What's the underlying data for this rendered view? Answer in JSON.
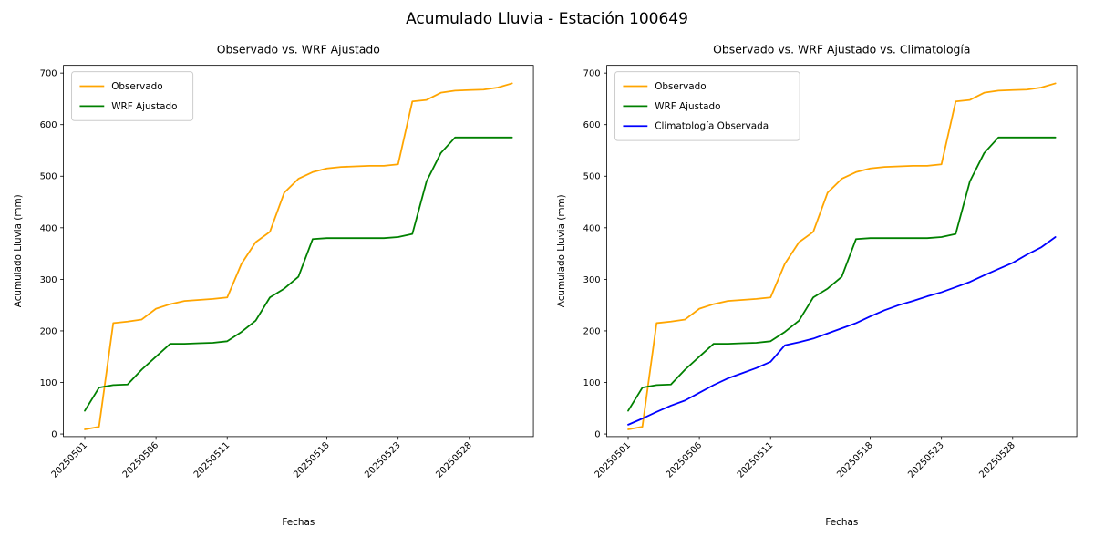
{
  "figure": {
    "title": "Acumulado Lluvia - Estación 100649"
  },
  "chart_data": [
    {
      "type": "line",
      "title": "Observado vs. WRF Ajustado",
      "xlabel": "Fechas",
      "ylabel": "Acumulado Lluvia (mm)",
      "ylim": [
        -5,
        715
      ],
      "yticks": [
        0,
        100,
        200,
        300,
        400,
        500,
        600,
        700
      ],
      "grid": false,
      "legend_position": "upper left",
      "x": [
        "20250501",
        "20250502",
        "20250503",
        "20250504",
        "20250505",
        "20250506",
        "20250507",
        "20250508",
        "20250509",
        "20250510",
        "20250511",
        "20250512",
        "20250513",
        "20250514",
        "20250515",
        "20250516",
        "20250517",
        "20250518",
        "20250519",
        "20250520",
        "20250521",
        "20250522",
        "20250523",
        "20250524",
        "20250525",
        "20250526",
        "20250527",
        "20250528",
        "20250529",
        "20250530",
        "20250531"
      ],
      "xtick_labels": [
        "20250501",
        "20250506",
        "20250511",
        "20250518",
        "20250523",
        "20250528"
      ],
      "series": [
        {
          "name": "Observado",
          "color": "#FFA500",
          "values": [
            9,
            14,
            215,
            218,
            222,
            243,
            252,
            258,
            260,
            262,
            265,
            330,
            372,
            392,
            468,
            495,
            508,
            515,
            518,
            519,
            520,
            520,
            523,
            645,
            648,
            662,
            666,
            667,
            668,
            672,
            680
          ]
        },
        {
          "name": "WRF Ajustado",
          "color": "#008000",
          "values": [
            45,
            90,
            95,
            96,
            125,
            150,
            175,
            175,
            176,
            177,
            180,
            198,
            220,
            265,
            282,
            305,
            378,
            380,
            380,
            380,
            380,
            380,
            382,
            388,
            490,
            545,
            575,
            575,
            575,
            575,
            575
          ]
        }
      ]
    },
    {
      "type": "line",
      "title": "Observado vs. WRF Ajustado vs. Climatología",
      "xlabel": "Fechas",
      "ylabel": "Acumulado Lluvia (mm)",
      "ylim": [
        -5,
        715
      ],
      "yticks": [
        0,
        100,
        200,
        300,
        400,
        500,
        600,
        700
      ],
      "grid": false,
      "legend_position": "upper left",
      "x": [
        "20250501",
        "20250502",
        "20250503",
        "20250504",
        "20250505",
        "20250506",
        "20250507",
        "20250508",
        "20250509",
        "20250510",
        "20250511",
        "20250512",
        "20250513",
        "20250514",
        "20250515",
        "20250516",
        "20250517",
        "20250518",
        "20250519",
        "20250520",
        "20250521",
        "20250522",
        "20250523",
        "20250524",
        "20250525",
        "20250526",
        "20250527",
        "20250528",
        "20250529",
        "20250530",
        "20250531"
      ],
      "xtick_labels": [
        "20250501",
        "20250506",
        "20250511",
        "20250518",
        "20250523",
        "20250528"
      ],
      "series": [
        {
          "name": "Observado",
          "color": "#FFA500",
          "values": [
            9,
            14,
            215,
            218,
            222,
            243,
            252,
            258,
            260,
            262,
            265,
            330,
            372,
            392,
            468,
            495,
            508,
            515,
            518,
            519,
            520,
            520,
            523,
            645,
            648,
            662,
            666,
            667,
            668,
            672,
            680
          ]
        },
        {
          "name": "WRF Ajustado",
          "color": "#008000",
          "values": [
            45,
            90,
            95,
            96,
            125,
            150,
            175,
            175,
            176,
            177,
            180,
            198,
            220,
            265,
            282,
            305,
            378,
            380,
            380,
            380,
            380,
            380,
            382,
            388,
            490,
            545,
            575,
            575,
            575,
            575,
            575
          ]
        },
        {
          "name": "Climatología Observada",
          "color": "#0000FF",
          "values": [
            18,
            30,
            43,
            55,
            65,
            80,
            95,
            108,
            118,
            128,
            140,
            172,
            178,
            185,
            195,
            205,
            215,
            228,
            240,
            250,
            258,
            267,
            275,
            285,
            295,
            308,
            320,
            332,
            348,
            362,
            382
          ]
        }
      ]
    }
  ]
}
